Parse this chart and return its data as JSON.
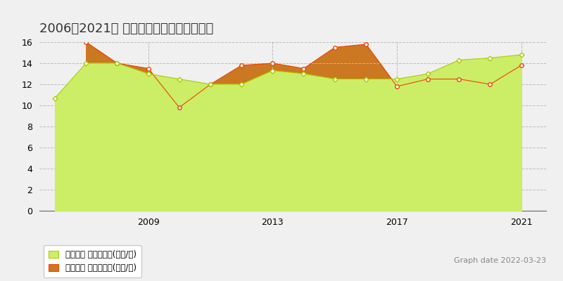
{
  "title": "2006～2021年 つくばみらい市の地価推移",
  "ylim": [
    0,
    16
  ],
  "yticks": [
    0,
    2,
    4,
    6,
    8,
    10,
    12,
    14,
    16
  ],
  "background_color": "#f0f0f0",
  "plot_bg_color": "#f0f0f0",
  "grid_color": "#bbbbbb",
  "graph_date": "Graph date 2022-03-23",
  "legend1": "地価公示 平均坤単価(万円/坤)",
  "legend2": "取引価格 平均坤単価(万円/坤)",
  "kouchi_years": [
    2006,
    2007,
    2008,
    2009,
    2010,
    2011,
    2012,
    2013,
    2014,
    2015,
    2016,
    2017,
    2018,
    2019,
    2020,
    2021
  ],
  "kouchi_values": [
    10.7,
    14.0,
    14.0,
    13.0,
    12.5,
    12.0,
    12.0,
    13.3,
    13.0,
    12.5,
    12.5,
    12.5,
    13.0,
    14.3,
    14.5,
    14.8
  ],
  "torihiki_years": [
    2006,
    2007,
    2008,
    2009,
    2010,
    2011,
    2012,
    2013,
    2014,
    2015,
    2016,
    2017,
    2018,
    2019,
    2020,
    2021
  ],
  "torihiki_values": [
    null,
    16.0,
    14.0,
    13.5,
    9.8,
    12.0,
    13.8,
    14.0,
    13.5,
    15.5,
    15.8,
    11.8,
    12.5,
    12.5,
    12.0,
    13.8
  ],
  "kouchi_color": "#aacc00",
  "kouchi_fill": "#ccee66",
  "torihiki_color": "#ee4400",
  "torihiki_fill": "#cc7722",
  "marker_fill": "#ffffff",
  "xtick_years": [
    2009,
    2013,
    2017,
    2021
  ],
  "title_fontsize": 13,
  "tick_fontsize": 9
}
